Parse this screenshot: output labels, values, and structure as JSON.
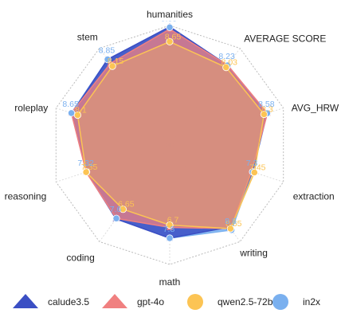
{
  "chart_data": {
    "type": "radar",
    "axes": [
      "humanities",
      "AVERAGE SCORE",
      "AVG_HRW",
      "extraction",
      "writing",
      "math",
      "coding",
      "reasoning",
      "roleplay",
      "stem"
    ],
    "rmax": 10,
    "grid": true,
    "legend_position": "bottom",
    "series": [
      {
        "name": "calude3.5",
        "marker": "triangle",
        "color": "#3b4fc4",
        "labels_shown": false,
        "values": [
          9.9,
          8.25,
          8.55,
          7.3,
          8.5,
          7.8,
          7.65,
          7.32,
          8.6,
          8.85
        ]
      },
      {
        "name": "gpt-4o",
        "marker": "triangle",
        "color": "#f08080",
        "labels_shown": false,
        "values": [
          9.7,
          8.25,
          8.6,
          7.2,
          8.65,
          6.9,
          7.6,
          7.35,
          8.65,
          8.45
        ]
      },
      {
        "name": "qwen2.5-72b",
        "marker": "circle",
        "color": "#fcc454",
        "labels_shown": true,
        "values": [
          8.65,
          8.03,
          8.3,
          7.45,
          8.65,
          6.7,
          6.65,
          7.35,
          8.1,
          8.15
        ],
        "value_labels": [
          "8.65",
          "8.03",
          "8.3",
          "7.45",
          "8.65",
          "6.7",
          "6.65",
          "7.35",
          "8.1",
          "8.15"
        ]
      },
      {
        "name": "in2x",
        "marker": "circle",
        "color": "#7ab0ef",
        "labels_shown": true,
        "values": [
          9.85,
          8.23,
          8.58,
          7.3,
          8.8,
          7.8,
          7.6,
          7.32,
          8.65,
          8.85
        ],
        "value_labels": [
          "9.85",
          "8.23",
          "8.58",
          "7.3",
          "8.8",
          "7.8",
          "7.6",
          "7.32",
          "8.65",
          "8.85"
        ]
      }
    ]
  }
}
